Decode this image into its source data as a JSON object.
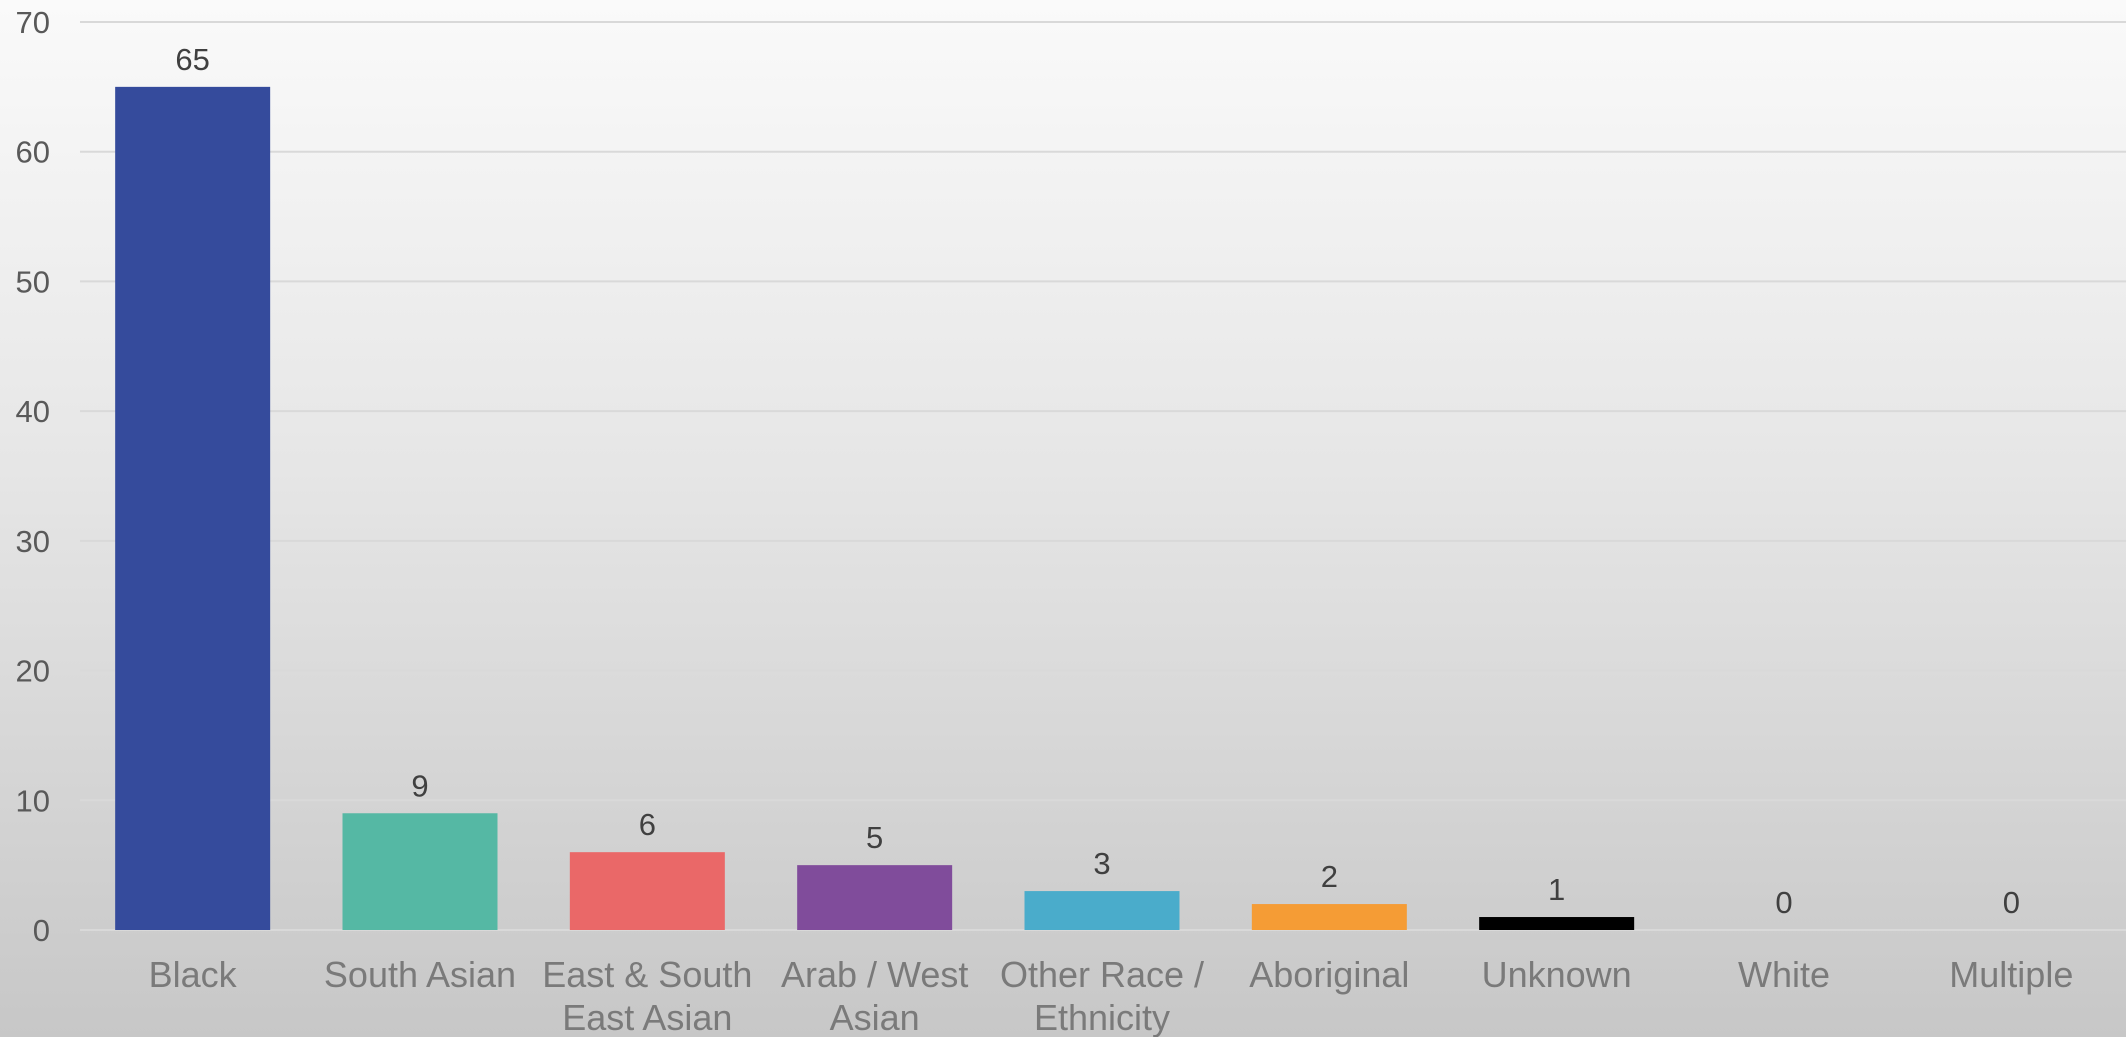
{
  "chart_data": {
    "type": "bar",
    "title": "",
    "xlabel": "",
    "ylabel": "",
    "categories": [
      [
        "Black"
      ],
      [
        "South Asian"
      ],
      [
        "East & South",
        "East Asian"
      ],
      [
        "Arab / West",
        "Asian"
      ],
      [
        "Other Race /",
        "Ethnicity"
      ],
      [
        "Aboriginal"
      ],
      [
        "Unknown"
      ],
      [
        "White"
      ],
      [
        "Multiple"
      ]
    ],
    "values": [
      65,
      9,
      6,
      5,
      3,
      2,
      1,
      0,
      0
    ],
    "data_labels": [
      "65",
      "9",
      "6",
      "5",
      "3",
      "2",
      "1",
      "0",
      "0"
    ],
    "colors": [
      "#354b9c",
      "#55b8a4",
      "#ea6868",
      "#804c9b",
      "#4aaccb",
      "#f59c35",
      "#000000",
      "#000000",
      "#000000"
    ],
    "ylim": [
      0,
      70
    ],
    "yticks": [
      "0",
      "10",
      "20",
      "30",
      "40",
      "50",
      "60",
      "70"
    ],
    "grid": true,
    "legend": "none"
  }
}
